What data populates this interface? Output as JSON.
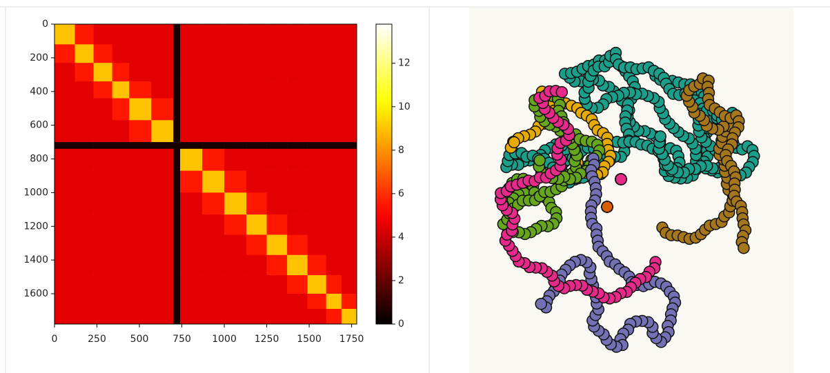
{
  "chart_data": {
    "type": "heatmap",
    "cmap": "hot",
    "xbins": [
      0,
      120,
      230,
      340,
      440,
      570,
      700,
      740,
      870,
      1000,
      1130,
      1250,
      1370,
      1490,
      1600,
      1690,
      1780
    ],
    "ybins": [
      0,
      120,
      230,
      340,
      440,
      570,
      700,
      740,
      870,
      1000,
      1130,
      1250,
      1370,
      1490,
      1600,
      1690,
      1780
    ],
    "z": [
      [
        9,
        5.5,
        4.5,
        4.5,
        4.5,
        4.5,
        0.5,
        4.5,
        4.5,
        4.5,
        4.5,
        4.5,
        4.5,
        4.5,
        4.5,
        4.5
      ],
      [
        5.5,
        9,
        5.5,
        4.5,
        4.5,
        4.5,
        0.5,
        4.5,
        4.5,
        4.5,
        4.5,
        4.5,
        4.5,
        4.5,
        4.5,
        4.5
      ],
      [
        4.5,
        5.5,
        9,
        5.5,
        4.5,
        4.5,
        0.5,
        4.5,
        4.5,
        4.5,
        4.5,
        4.5,
        4.5,
        4.5,
        4.5,
        4.5
      ],
      [
        4.5,
        4.5,
        5.5,
        9,
        5.5,
        4.5,
        0.5,
        4.5,
        4.5,
        4.5,
        4.5,
        4.5,
        4.5,
        4.5,
        4.5,
        4.5
      ],
      [
        4.5,
        4.5,
        4.5,
        5.5,
        9,
        5.5,
        0.5,
        4.5,
        4.5,
        4.5,
        4.5,
        4.5,
        4.5,
        4.5,
        4.5,
        4.5
      ],
      [
        4.5,
        4.5,
        4.5,
        4.5,
        5.5,
        9,
        0.5,
        4.5,
        4.5,
        4.5,
        4.5,
        4.5,
        4.5,
        4.5,
        4.5,
        4.5
      ],
      [
        0.5,
        0.5,
        0.5,
        0.5,
        0.5,
        0.5,
        0.5,
        0.5,
        0.5,
        0.5,
        0.5,
        0.5,
        0.5,
        0.5,
        0.5,
        0.5
      ],
      [
        4.5,
        4.5,
        4.5,
        4.5,
        4.5,
        4.5,
        0.5,
        9,
        5.5,
        4.5,
        4.5,
        4.5,
        4.5,
        4.5,
        4.5,
        4.5
      ],
      [
        4.5,
        4.5,
        4.5,
        4.5,
        4.5,
        4.5,
        0.5,
        5.5,
        9,
        5.5,
        4.5,
        4.5,
        4.5,
        4.5,
        4.5,
        4.5
      ],
      [
        4.5,
        4.5,
        4.5,
        4.5,
        4.5,
        4.5,
        0.5,
        4.5,
        5.5,
        9,
        5.5,
        4.5,
        4.5,
        4.5,
        4.5,
        4.5
      ],
      [
        4.5,
        4.5,
        4.5,
        4.5,
        4.5,
        4.5,
        0.5,
        4.5,
        4.5,
        5.5,
        9,
        5.5,
        4.5,
        4.5,
        4.5,
        4.5
      ],
      [
        4.5,
        4.5,
        4.5,
        4.5,
        4.5,
        4.5,
        0.5,
        4.5,
        4.5,
        4.5,
        5.5,
        9,
        5.5,
        4.5,
        4.5,
        4.5
      ],
      [
        4.5,
        4.5,
        4.5,
        4.5,
        4.5,
        4.5,
        0.5,
        4.5,
        4.5,
        4.5,
        4.5,
        5.5,
        9,
        5.5,
        4.5,
        4.5
      ],
      [
        4.5,
        4.5,
        4.5,
        4.5,
        4.5,
        4.5,
        0.5,
        4.5,
        4.5,
        4.5,
        4.5,
        4.5,
        5.5,
        9,
        5.5,
        4.5
      ],
      [
        4.5,
        4.5,
        4.5,
        4.5,
        4.5,
        4.5,
        0.5,
        4.5,
        4.5,
        4.5,
        4.5,
        4.5,
        4.5,
        5.5,
        9,
        5.5
      ],
      [
        4.5,
        4.5,
        4.5,
        4.5,
        4.5,
        4.5,
        0.5,
        4.5,
        4.5,
        4.5,
        4.5,
        4.5,
        4.5,
        4.5,
        5.5,
        9
      ]
    ],
    "xlim": [
      0,
      1780
    ],
    "xticks": [
      0,
      250,
      500,
      750,
      1000,
      1250,
      1500,
      1750
    ],
    "ylim": [
      1780,
      0
    ],
    "yticks": [
      0,
      200,
      400,
      600,
      800,
      1000,
      1200,
      1400,
      1600
    ],
    "clim": [
      0,
      13.8
    ],
    "cticks": [
      0,
      2,
      4,
      6,
      8,
      10,
      12
    ]
  }
}
